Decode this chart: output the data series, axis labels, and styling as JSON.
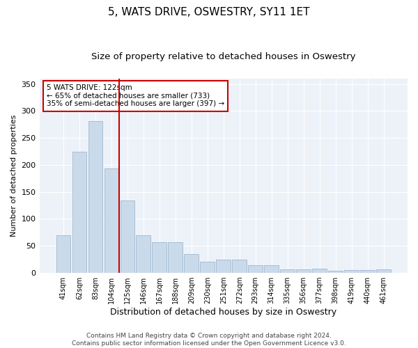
{
  "title": "5, WATS DRIVE, OSWESTRY, SY11 1ET",
  "subtitle": "Size of property relative to detached houses in Oswestry",
  "xlabel": "Distribution of detached houses by size in Oswestry",
  "ylabel": "Number of detached properties",
  "categories": [
    "41sqm",
    "62sqm",
    "83sqm",
    "104sqm",
    "125sqm",
    "146sqm",
    "167sqm",
    "188sqm",
    "209sqm",
    "230sqm",
    "251sqm",
    "272sqm",
    "293sqm",
    "314sqm",
    "335sqm",
    "356sqm",
    "377sqm",
    "398sqm",
    "419sqm",
    "440sqm",
    "461sqm"
  ],
  "values": [
    70,
    224,
    281,
    194,
    134,
    70,
    57,
    57,
    35,
    21,
    25,
    25,
    14,
    14,
    6,
    6,
    8,
    4,
    5,
    5,
    6
  ],
  "bar_color": "#c9daea",
  "bar_edge_color": "#a0b8d0",
  "vline_index": 3.5,
  "vline_color": "#cc0000",
  "annotation_text": "5 WATS DRIVE: 122sqm\n← 65% of detached houses are smaller (733)\n35% of semi-detached houses are larger (397) →",
  "annotation_box_color": "#ffffff",
  "annotation_box_edge": "#cc0000",
  "ylim": [
    0,
    360
  ],
  "yticks": [
    0,
    50,
    100,
    150,
    200,
    250,
    300,
    350
  ],
  "bg_color": "#edf2f9",
  "footer": "Contains HM Land Registry data © Crown copyright and database right 2024.\nContains public sector information licensed under the Open Government Licence v3.0.",
  "title_fontsize": 11,
  "subtitle_fontsize": 9.5,
  "xlabel_fontsize": 9,
  "ylabel_fontsize": 8,
  "footer_fontsize": 6.5
}
